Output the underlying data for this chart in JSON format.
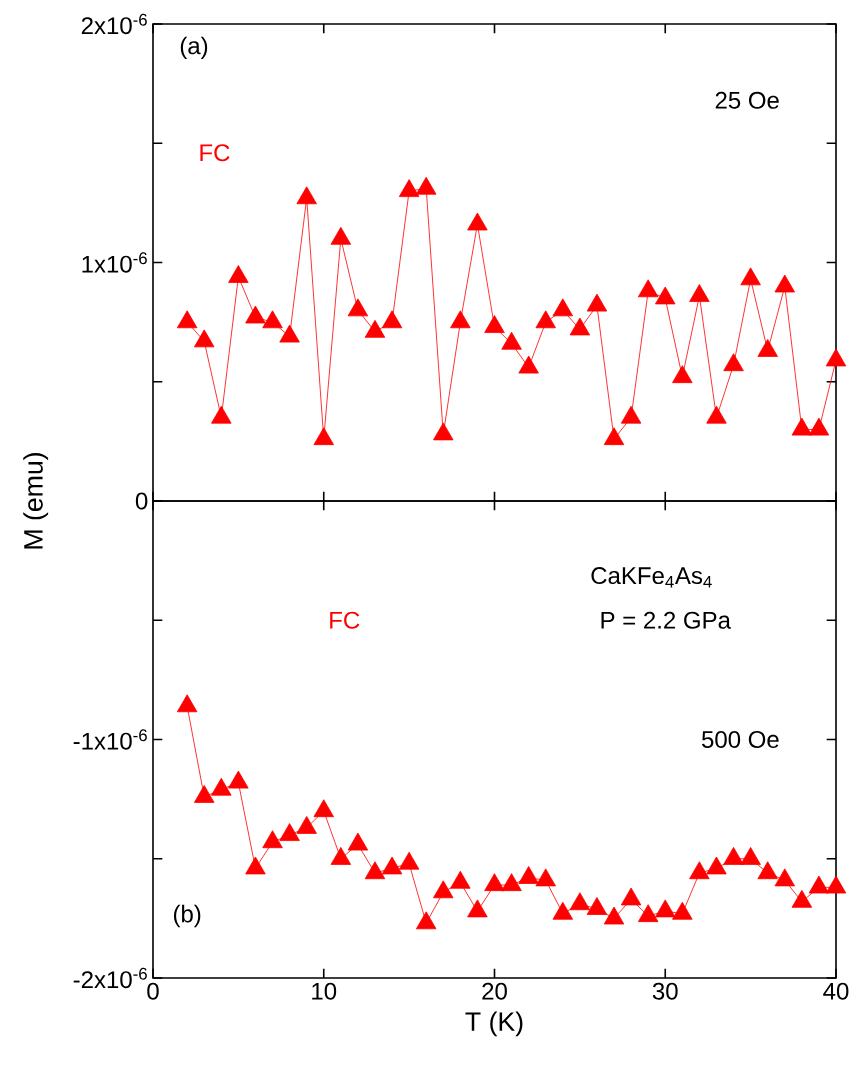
{
  "chart_data": [
    {
      "type": "line",
      "x": [
        2,
        3,
        4,
        5,
        6,
        7,
        8,
        9,
        10,
        11,
        12,
        13,
        14,
        15,
        16,
        17,
        18,
        19,
        20,
        21,
        22,
        23,
        24,
        25,
        26,
        27,
        28,
        29,
        30,
        31,
        32,
        33,
        34,
        35,
        36,
        37,
        38,
        39,
        40
      ],
      "series": [
        {
          "color": "#ff0000",
          "values": [
            7.5e-07,
            6.7e-07,
            3.5e-07,
            9.4e-07,
            7.7e-07,
            7.5e-07,
            6.9e-07,
            1.27e-06,
            2.6e-07,
            1.1e-06,
            8e-07,
            7.1e-07,
            7.5e-07,
            1.3e-06,
            1.31e-06,
            2.8e-07,
            7.5e-07,
            1.16e-06,
            7.3e-07,
            6.6e-07,
            5.6e-07,
            7.5e-07,
            8e-07,
            7.2e-07,
            8.2e-07,
            2.6e-07,
            3.5e-07,
            8.8e-07,
            8.5e-07,
            5.2e-07,
            8.6e-07,
            3.5e-07,
            5.7e-07,
            9.3e-07,
            6.3e-07,
            9e-07,
            3e-07,
            3e-07,
            5.9e-07
          ]
        }
      ],
      "xlim": [
        0,
        40
      ],
      "xticks": [
        0,
        10,
        20,
        30,
        40
      ],
      "ylim": [
        0,
        2e-06
      ],
      "yticks": [
        {
          "value": 0,
          "label": "0"
        },
        {
          "value": 5e-07,
          "label": null
        },
        {
          "value": 1e-06,
          "label": "1x10$^{-6}$"
        },
        {
          "value": 1.5e-06,
          "label": null
        },
        {
          "value": 2e-06,
          "label": "2x10$^{-6}$"
        }
      ],
      "ylabel": "M (emu)",
      "annotations": [
        "(a)",
        "25 Oe",
        "FC"
      ],
      "tick_labels": "y",
      "marker": "triangle",
      "line_style": "solid",
      "grid": false
    },
    {
      "type": "line",
      "x": [
        2,
        3,
        4,
        5,
        6,
        7,
        8,
        9,
        10,
        11,
        12,
        13,
        14,
        15,
        16,
        17,
        18,
        19,
        20,
        21,
        22,
        23,
        24,
        25,
        26,
        27,
        28,
        29,
        30,
        31,
        32,
        33,
        34,
        35,
        36,
        37,
        38,
        39,
        40
      ],
      "series": [
        {
          "color": "#ff0000",
          "values": [
            -8.6e-07,
            -1.24e-06,
            -1.21e-06,
            -1.18e-06,
            -1.54e-06,
            -1.43e-06,
            -1.4e-06,
            -1.37e-06,
            -1.3e-06,
            -1.5e-06,
            -1.44e-06,
            -1.56e-06,
            -1.54e-06,
            -1.52e-06,
            -1.77e-06,
            -1.64e-06,
            -1.6e-06,
            -1.72e-06,
            -1.61e-06,
            -1.61e-06,
            -1.58e-06,
            -1.59e-06,
            -1.73e-06,
            -1.69e-06,
            -1.71e-06,
            -1.75e-06,
            -1.67e-06,
            -1.74e-06,
            -1.72e-06,
            -1.73e-06,
            -1.56e-06,
            -1.54e-06,
            -1.5e-06,
            -1.5e-06,
            -1.56e-06,
            -1.59e-06,
            -1.68e-06,
            -1.62e-06,
            -1.62e-06
          ]
        }
      ],
      "xlim": [
        0,
        40
      ],
      "xticks": [
        0,
        10,
        20,
        30,
        40
      ],
      "ylim": [
        -2e-06,
        0
      ],
      "yticks": [
        {
          "value": -2e-06,
          "label": "-2x10$^{-6}$"
        },
        {
          "value": -1.5e-06,
          "label": null
        },
        {
          "value": -1e-06,
          "label": "-1x10$^{-6}$"
        },
        {
          "value": -5e-07,
          "label": null
        },
        {
          "value": 0,
          "label": null
        }
      ],
      "xlabel": "T (K)",
      "annotations": [
        "CaKFe$_{4}$As$_{4}$",
        "P = 2.2 GPa",
        "FC",
        "500 Oe",
        "(b)"
      ],
      "marker": "triangle",
      "line_style": "solid",
      "grid": false
    }
  ]
}
